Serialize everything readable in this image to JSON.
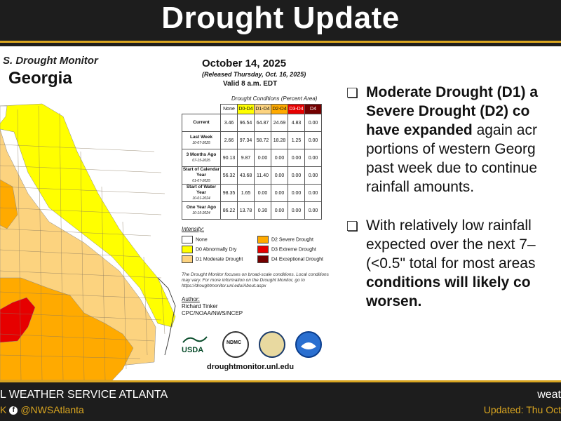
{
  "header": {
    "title": "Drought Update"
  },
  "map": {
    "monitor_heading": "S. Drought Monitor",
    "state": "Georgia",
    "date": "October 14, 2025",
    "released": "(Released Thursday, Oct. 16, 2025)",
    "valid": "Valid 8 a.m. EDT",
    "conditions_title": "Drought Conditions (Percent Area)",
    "columns": [
      "None",
      "D0-D4",
      "D1-D4",
      "D2-D4",
      "D3-D4",
      "D4"
    ],
    "rows": [
      {
        "label": "Current",
        "date": "",
        "values": [
          "3.46",
          "96.54",
          "64.87",
          "24.69",
          "4.83",
          "0.00"
        ]
      },
      {
        "label": "Last Week",
        "date": "10-07-2025",
        "values": [
          "2.66",
          "97.34",
          "58.72",
          "18.28",
          "1.25",
          "0.00"
        ]
      },
      {
        "label": "3 Months Ago",
        "date": "07-15-2025",
        "values": [
          "90.13",
          "9.87",
          "0.00",
          "0.00",
          "0.00",
          "0.00"
        ]
      },
      {
        "label": "Start of Calendar Year",
        "date": "01-07-2025",
        "values": [
          "56.32",
          "43.68",
          "11.40",
          "0.00",
          "0.00",
          "0.00"
        ]
      },
      {
        "label": "Start of Water Year",
        "date": "10-01-2024",
        "values": [
          "98.35",
          "1.65",
          "0.00",
          "0.00",
          "0.00",
          "0.00"
        ]
      },
      {
        "label": "One Year Ago",
        "date": "10-15-2024",
        "values": [
          "86.22",
          "13.78",
          "0.30",
          "0.00",
          "0.00",
          "0.00"
        ]
      }
    ],
    "legend_title": "Intensity:",
    "legend": [
      {
        "label": "None",
        "color": "#ffffff"
      },
      {
        "label": "D0 Abnormally Dry",
        "color": "#ffff00"
      },
      {
        "label": "D1 Moderate Drought",
        "color": "#fcd37f"
      },
      {
        "label": "D2 Severe Drought",
        "color": "#ffaa00"
      },
      {
        "label": "D3 Extreme Drought",
        "color": "#e60000"
      },
      {
        "label": "D4 Exceptional Drought",
        "color": "#730000"
      }
    ],
    "note": "The Drought Monitor focuses on broad-scale conditions. Local conditions may vary. For more information on the Drought Monitor, go to https://droughtmonitor.unl.edu/About.aspx",
    "author_label": "Author:",
    "author_name": "Richard Tinker",
    "author_org": "CPC/NOAA/NWS/NCEP",
    "usda": "USDA",
    "ndmc": "NDMC",
    "url": "droughtmonitor.unl.edu"
  },
  "bullets": {
    "b1_bold1": "Moderate Drought (D1) a",
    "b1_bold2": "Severe Drought (D2) co",
    "b1_bold3": "have expanded",
    "b1_rest3": " again acr",
    "b1_line4": "portions of western Georg",
    "b1_line5": "past week due to continue",
    "b1_line6": "rainfall amounts.",
    "b2_line1": "With relatively low rainfall",
    "b2_line2": "expected over the next 7–",
    "b2_line3": "(<0.5\" total for most areas",
    "b2_bold4": "conditions will likely co",
    "b2_bold5": "worsen."
  },
  "footer": {
    "left_line1": "L WEATHER SERVICE ATLANTA",
    "left_line2_prefix": "K",
    "twitter": "@NWSAtlanta",
    "right_line1": "weat",
    "right_line2": "Updated: Thu Oct"
  }
}
